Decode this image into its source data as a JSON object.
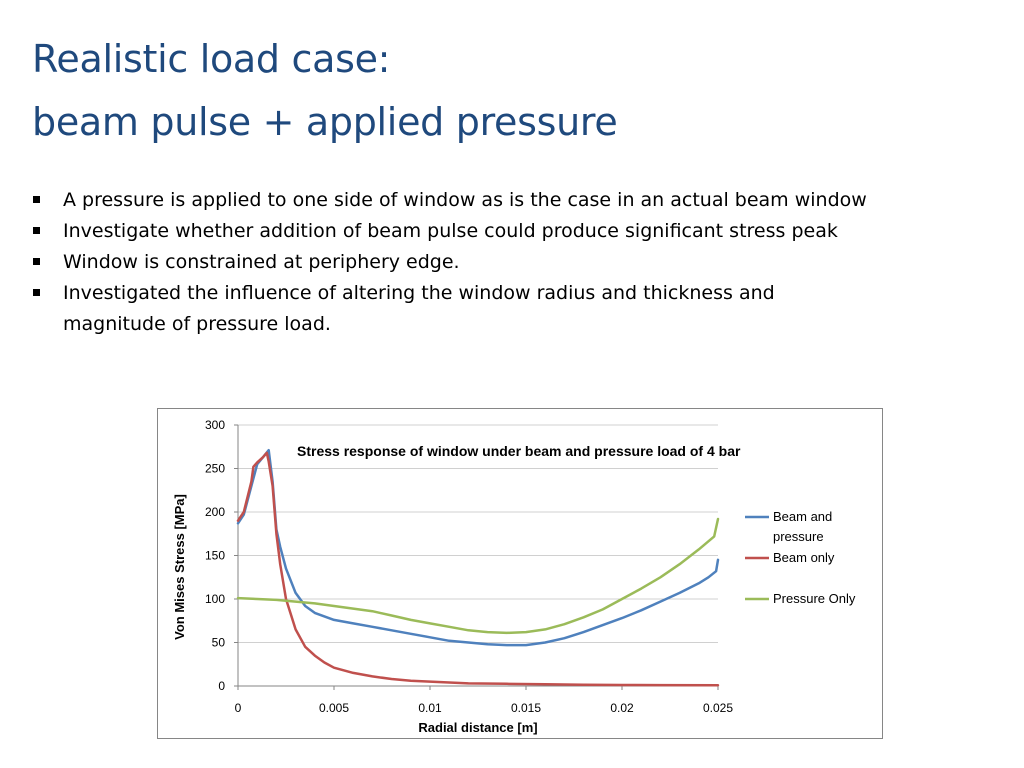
{
  "slide": {
    "title_line1": "Realistic load case:",
    "title_line2": "beam pulse + applied pressure",
    "bullets": [
      "A pressure is applied to one side of window as is the case in an actual beam window",
      "Investigate whether addition of beam pulse could produce significant stress peak",
      "Window is constrained at periphery edge.",
      "Investigated the influence of altering the window radius and thickness and magnitude of pressure load."
    ]
  },
  "chart_data": {
    "type": "line",
    "title": "Stress response of window under beam and pressure load of 4 bar",
    "xlabel": "Radial distance [m]",
    "ylabel": "Von Mises Stress [MPa]",
    "xlim": [
      0,
      0.025
    ],
    "ylim": [
      0,
      300
    ],
    "x_ticks": [
      "0",
      "0.005",
      "0.01",
      "0.015",
      "0.02",
      "0.025"
    ],
    "y_ticks": [
      "0",
      "50",
      "100",
      "150",
      "200",
      "250",
      "300"
    ],
    "grid": "horizontal",
    "legend_position": "right",
    "series": [
      {
        "name": "Beam and pressure",
        "color": "#4f81bd",
        "points": [
          [
            0,
            187
          ],
          [
            0.0003,
            197
          ],
          [
            0.0007,
            230
          ],
          [
            0.001,
            255
          ],
          [
            0.0013,
            263
          ],
          [
            0.0016,
            271
          ],
          [
            0.0018,
            235
          ],
          [
            0.002,
            180
          ],
          [
            0.0022,
            160
          ],
          [
            0.0025,
            135
          ],
          [
            0.003,
            107
          ],
          [
            0.0035,
            92
          ],
          [
            0.004,
            84
          ],
          [
            0.005,
            76
          ],
          [
            0.006,
            72
          ],
          [
            0.007,
            68
          ],
          [
            0.008,
            64
          ],
          [
            0.009,
            60
          ],
          [
            0.01,
            56
          ],
          [
            0.011,
            52
          ],
          [
            0.012,
            50
          ],
          [
            0.013,
            48
          ],
          [
            0.014,
            47
          ],
          [
            0.015,
            47
          ],
          [
            0.016,
            50
          ],
          [
            0.017,
            55
          ],
          [
            0.018,
            62
          ],
          [
            0.019,
            70
          ],
          [
            0.02,
            78
          ],
          [
            0.021,
            87
          ],
          [
            0.022,
            97
          ],
          [
            0.023,
            107
          ],
          [
            0.024,
            118
          ],
          [
            0.0245,
            125
          ],
          [
            0.0249,
            132
          ],
          [
            0.025,
            145
          ]
        ]
      },
      {
        "name": "Beam only",
        "color": "#c0504d",
        "points": [
          [
            0,
            190
          ],
          [
            0.0003,
            200
          ],
          [
            0.0007,
            235
          ],
          [
            0.0008,
            252
          ],
          [
            0.001,
            257
          ],
          [
            0.0013,
            263
          ],
          [
            0.0015,
            268
          ],
          [
            0.0016,
            258
          ],
          [
            0.0018,
            230
          ],
          [
            0.002,
            175
          ],
          [
            0.0022,
            140
          ],
          [
            0.0025,
            100
          ],
          [
            0.003,
            65
          ],
          [
            0.0035,
            45
          ],
          [
            0.004,
            35
          ],
          [
            0.0045,
            27
          ],
          [
            0.005,
            21
          ],
          [
            0.006,
            15
          ],
          [
            0.007,
            11
          ],
          [
            0.008,
            8
          ],
          [
            0.009,
            6
          ],
          [
            0.01,
            5
          ],
          [
            0.012,
            3
          ],
          [
            0.014,
            2.5
          ],
          [
            0.016,
            2
          ],
          [
            0.018,
            1.5
          ],
          [
            0.02,
            1.2
          ],
          [
            0.022,
            1
          ],
          [
            0.025,
            0.8
          ]
        ]
      },
      {
        "name": "Pressure Only",
        "color": "#9bbb59",
        "points": [
          [
            0,
            101
          ],
          [
            0.001,
            100
          ],
          [
            0.002,
            99
          ],
          [
            0.003,
            97
          ],
          [
            0.004,
            95
          ],
          [
            0.005,
            92
          ],
          [
            0.006,
            89
          ],
          [
            0.007,
            86
          ],
          [
            0.008,
            81
          ],
          [
            0.009,
            76
          ],
          [
            0.01,
            72
          ],
          [
            0.011,
            68
          ],
          [
            0.012,
            64
          ],
          [
            0.013,
            62
          ],
          [
            0.014,
            61
          ],
          [
            0.015,
            62
          ],
          [
            0.016,
            65
          ],
          [
            0.017,
            71
          ],
          [
            0.018,
            79
          ],
          [
            0.019,
            88
          ],
          [
            0.02,
            100
          ],
          [
            0.021,
            112
          ],
          [
            0.022,
            125
          ],
          [
            0.023,
            140
          ],
          [
            0.024,
            157
          ],
          [
            0.0248,
            172
          ],
          [
            0.025,
            192
          ]
        ]
      }
    ]
  }
}
